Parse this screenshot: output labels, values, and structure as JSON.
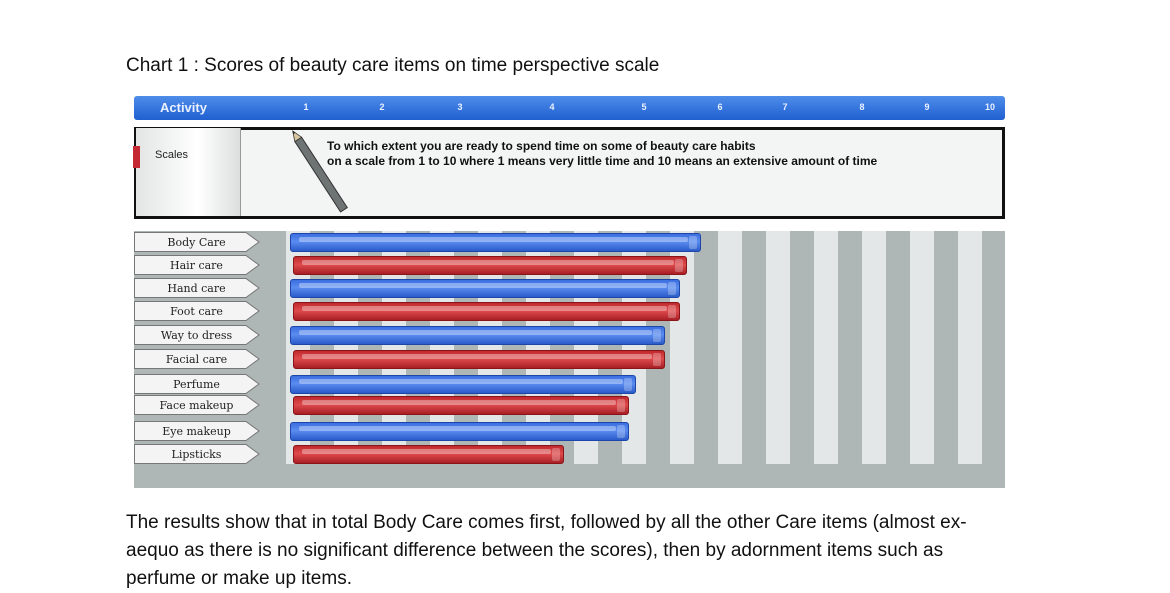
{
  "page_title": "Chart 1 : Scores of beauty care items on time perspective scale",
  "body_lines": [
    "The results show that in total Body Care comes first, followed by all the other Care items (almost ex-",
    "aequo as there is no significant difference between the scores), then by adornment items such as",
    "perfume or make up items."
  ],
  "colors": {
    "header": "#1f5fd0",
    "blue_bar": "#3c6fe0",
    "red_bar": "#c02a2e",
    "plot_bg": "#aeb6b6",
    "stripe": "#e4e7e7"
  },
  "icons": [
    "pencil-icon",
    "scroll-icon"
  ],
  "chart_data": {
    "type": "bar",
    "orientation": "horizontal",
    "header_label": "Activity",
    "scales_label": "Scales",
    "question_lines": [
      "To which extent you are ready to spend time on some of beauty care habits",
      "on a scale from 1 to 10 where 1 means very little time and 10 means an extensive amount of time"
    ],
    "tick_labels": [
      "1",
      "2",
      "3",
      "4",
      "5",
      "6",
      "7",
      "8",
      "9",
      "10"
    ],
    "xlim": [
      0,
      10
    ],
    "categories": [
      "Body Care",
      "Hair care",
      "Hand care",
      "Foot care",
      "Way to dress",
      "Facial care",
      "Perfume",
      "Face makeup",
      "Eye makeup",
      "Lipsticks"
    ],
    "values": [
      6.1,
      5.9,
      5.8,
      5.8,
      5.6,
      5.6,
      5.2,
      5.1,
      5.1,
      4.2
    ],
    "bar_colors": [
      "blue",
      "red",
      "blue",
      "red",
      "blue",
      "red",
      "blue",
      "red",
      "blue",
      "red"
    ],
    "grid": true
  }
}
